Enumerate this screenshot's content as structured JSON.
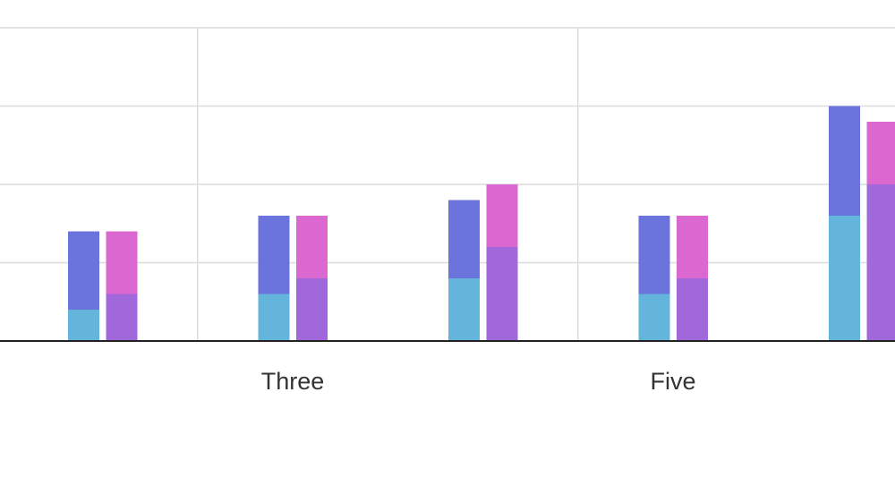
{
  "chart_data": {
    "type": "stacked-grouped-bar",
    "categories": [
      null,
      "Three",
      null,
      "Five",
      null
    ],
    "series": [
      {
        "stack": 0,
        "color": "#63b5db",
        "values": [
          4,
          6,
          8,
          6,
          16
        ]
      },
      {
        "stack": 0,
        "color": "#6b73dd",
        "values": [
          10,
          10,
          10,
          10,
          14
        ]
      },
      {
        "stack": 1,
        "color": "#a168dc",
        "values": [
          6,
          8,
          12,
          8,
          20
        ]
      },
      {
        "stack": 1,
        "color": "#db68d0",
        "values": [
          8,
          8,
          8,
          8,
          8
        ]
      }
    ],
    "ylim": [
      0,
      40
    ],
    "yticks": [
      0,
      10,
      20,
      30,
      40
    ],
    "grid": true
  }
}
